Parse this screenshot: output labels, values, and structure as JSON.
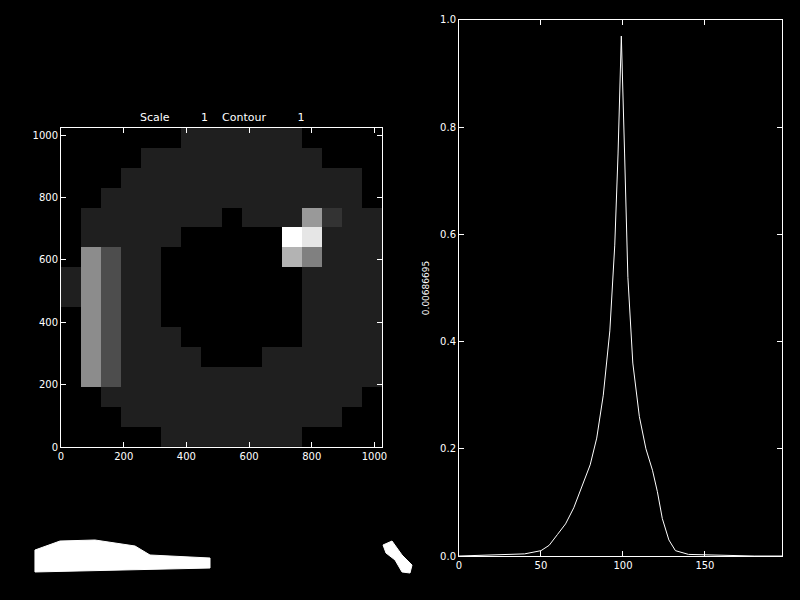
{
  "chart_data": [
    {
      "type": "heatmap",
      "title": "Scale         1    Contour         1",
      "x": [
        32,
        96,
        160,
        224,
        288,
        352,
        416,
        480,
        544,
        608,
        672,
        736,
        800,
        864,
        928,
        992
      ],
      "y": [
        32,
        96,
        160,
        224,
        288,
        352,
        416,
        480,
        544,
        608,
        672,
        736,
        800,
        864,
        928,
        992
      ],
      "z": [
        [
          0,
          0,
          0,
          0,
          0,
          0.12,
          0.12,
          0.12,
          0.12,
          0.12,
          0.12,
          0.12,
          0,
          0,
          0,
          0
        ],
        [
          0,
          0,
          0,
          0.12,
          0.12,
          0.12,
          0.12,
          0.12,
          0.12,
          0.12,
          0.12,
          0.12,
          0.12,
          0.12,
          0,
          0
        ],
        [
          0,
          0,
          0.12,
          0.12,
          0.12,
          0.12,
          0.12,
          0.12,
          0.12,
          0.12,
          0.12,
          0.12,
          0.12,
          0.12,
          0.12,
          0
        ],
        [
          0,
          0.55,
          0.3,
          0.12,
          0.12,
          0.12,
          0.12,
          0.12,
          0.12,
          0.12,
          0.12,
          0.12,
          0.12,
          0.12,
          0.12,
          0.12
        ],
        [
          0,
          0.55,
          0.3,
          0.12,
          0.12,
          0.12,
          0.12,
          0,
          0,
          0,
          0.12,
          0.12,
          0.12,
          0.12,
          0.12,
          0.12
        ],
        [
          0,
          0.55,
          0.3,
          0.12,
          0.12,
          0.12,
          0,
          0,
          0,
          0,
          0,
          0,
          0.12,
          0.12,
          0.12,
          0.12
        ],
        [
          0,
          0.55,
          0.3,
          0.12,
          0.12,
          0,
          0,
          0,
          0,
          0,
          0,
          0,
          0.12,
          0.12,
          0.12,
          0.12
        ],
        [
          0.12,
          0.55,
          0.3,
          0.12,
          0.12,
          0,
          0,
          0,
          0,
          0,
          0,
          0,
          0.12,
          0.12,
          0.12,
          0.12
        ],
        [
          0.12,
          0.55,
          0.3,
          0.12,
          0.12,
          0,
          0,
          0,
          0,
          0,
          0,
          0,
          0.12,
          0.12,
          0.12,
          0.12
        ],
        [
          0,
          0.55,
          0.3,
          0.12,
          0.12,
          0,
          0,
          0,
          0,
          0,
          0,
          0.7,
          0.5,
          0.12,
          0.12,
          0.12
        ],
        [
          0,
          0.12,
          0.12,
          0.12,
          0.12,
          0.12,
          0,
          0,
          0,
          0,
          0,
          1,
          0.9,
          0.12,
          0.12,
          0.12
        ],
        [
          0,
          0.12,
          0.12,
          0.12,
          0.12,
          0.12,
          0.12,
          0.12,
          0,
          0.12,
          0.12,
          0.12,
          0.6,
          0.2,
          0.12,
          0.12
        ],
        [
          0,
          0,
          0.12,
          0.12,
          0.12,
          0.12,
          0.12,
          0.12,
          0.12,
          0.12,
          0.12,
          0.12,
          0.12,
          0.12,
          0.12,
          0
        ],
        [
          0,
          0,
          0,
          0.12,
          0.12,
          0.12,
          0.12,
          0.12,
          0.12,
          0.12,
          0.12,
          0.12,
          0.12,
          0.12,
          0.12,
          0
        ],
        [
          0,
          0,
          0,
          0,
          0.12,
          0.12,
          0.12,
          0.12,
          0.12,
          0.12,
          0.12,
          0.12,
          0.12,
          0,
          0,
          0
        ],
        [
          0,
          0,
          0,
          0,
          0,
          0,
          0.12,
          0.12,
          0.12,
          0.12,
          0.12,
          0.12,
          0,
          0,
          0,
          0
        ]
      ],
      "zlim": [
        0,
        1
      ],
      "xlim": [
        0,
        1024
      ],
      "ylim": [
        0,
        1024
      ],
      "xticks": [
        0,
        200,
        400,
        600,
        800,
        1000
      ],
      "yticks": [
        0,
        200,
        400,
        600,
        800,
        1000
      ],
      "grid": false
    },
    {
      "type": "line",
      "ylabel": "0.00686695",
      "x": [
        0,
        20,
        40,
        50,
        55,
        60,
        65,
        70,
        75,
        80,
        84,
        88,
        92,
        95,
        97,
        99,
        101,
        103,
        106,
        110,
        114,
        118,
        121,
        124,
        128,
        132,
        140,
        160,
        180,
        197
      ],
      "values": [
        0,
        0.002,
        0.004,
        0.01,
        0.02,
        0.04,
        0.06,
        0.09,
        0.13,
        0.17,
        0.22,
        0.3,
        0.42,
        0.58,
        0.75,
        0.97,
        0.75,
        0.52,
        0.36,
        0.26,
        0.2,
        0.16,
        0.12,
        0.07,
        0.03,
        0.01,
        0.003,
        0.001,
        0,
        0
      ],
      "color": "#ffffff",
      "xlim": [
        0,
        197
      ],
      "xticks": [
        0,
        50,
        100,
        150
      ],
      "ylim": [
        0,
        1
      ],
      "yticks": [
        {
          "value": 0,
          "label": "0.0"
        },
        {
          "value": 0.2,
          "label": "0.2"
        },
        {
          "value": 0.4,
          "label": "0.4"
        },
        {
          "value": 0.6,
          "label": "0.6"
        },
        {
          "value": 0.8,
          "label": "0.8"
        },
        {
          "value": 1,
          "label": "1.0"
        }
      ],
      "grid": false
    }
  ]
}
